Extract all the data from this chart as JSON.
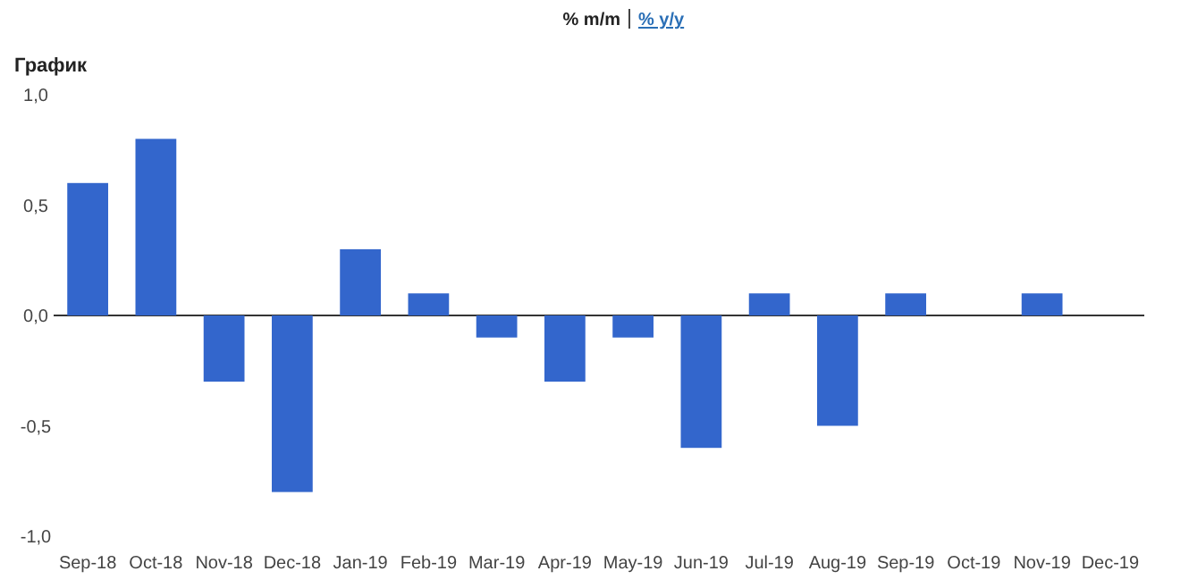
{
  "chart_data": {
    "type": "bar",
    "title": "График",
    "annotations": [
      "% m/m",
      "% y/y"
    ],
    "categories": [
      "Sep-18",
      "Oct-18",
      "Nov-18",
      "Dec-18",
      "Jan-19",
      "Feb-19",
      "Mar-19",
      "Apr-19",
      "May-19",
      "Jun-19",
      "Jul-19",
      "Aug-19",
      "Sep-19",
      "Oct-19",
      "Nov-19",
      "Dec-19"
    ],
    "values": [
      0.6,
      0.8,
      -0.3,
      -0.8,
      0.3,
      0.1,
      -0.1,
      -0.3,
      -0.1,
      -0.6,
      0.1,
      -0.5,
      0.1,
      0,
      0.1,
      null
    ],
    "color": "#3366cc",
    "ylim": [
      -1,
      1
    ],
    "yticks": [
      {
        "value": 1,
        "label": "1,0"
      },
      {
        "value": 0.5,
        "label": "0,5"
      },
      {
        "value": 0,
        "label": "0,0"
      },
      {
        "value": -0.5,
        "label": "-0,5"
      },
      {
        "value": -1,
        "label": "-1,0"
      }
    ]
  }
}
